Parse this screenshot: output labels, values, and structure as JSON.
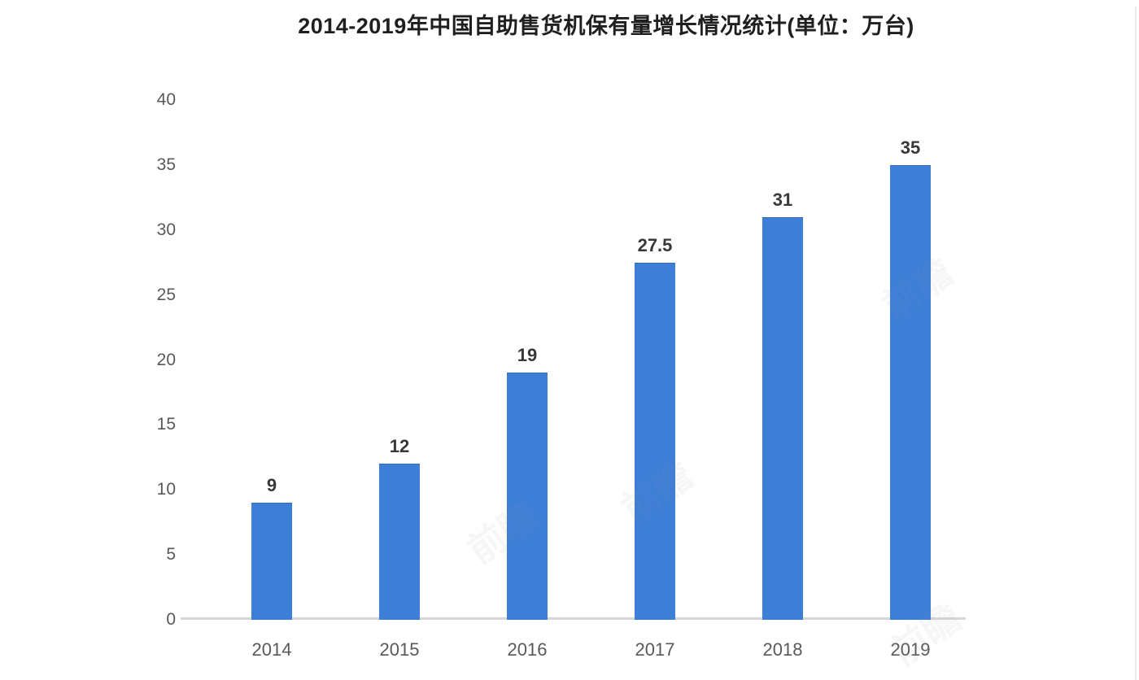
{
  "title": "2014-2019年中国自助售货机保有量增长情况统计(单位：万台)",
  "watermark": {
    "text": "前瞻"
  },
  "colors": {
    "bar": "#3d7ed7",
    "bar_edge": "#3470c2",
    "title_text": "#1f1f1f",
    "tick_text": "#595959",
    "value_text": "#383838",
    "baseline": "#d6d6d6",
    "right_border": "#ececec",
    "watermark": "#8c96aa",
    "background": "#ffffff"
  },
  "chart_data": {
    "type": "bar",
    "title": "2014-2019年中国自助售货机保有量增长情况统计(单位：万台)",
    "categories": [
      "2014",
      "2015",
      "2016",
      "2017",
      "2018",
      "2019"
    ],
    "values": [
      9,
      12,
      19,
      27.5,
      31,
      35
    ],
    "value_labels": [
      "9",
      "12",
      "19",
      "27.5",
      "31",
      "35"
    ],
    "xlabel": "",
    "ylabel": "",
    "unit": "万台",
    "ylim": [
      0,
      40
    ],
    "ytick_step": 5,
    "ytick_labels": [
      "0",
      "5",
      "10",
      "15",
      "20",
      "25",
      "30",
      "35",
      "40"
    ],
    "grid": false,
    "legend": "none"
  }
}
